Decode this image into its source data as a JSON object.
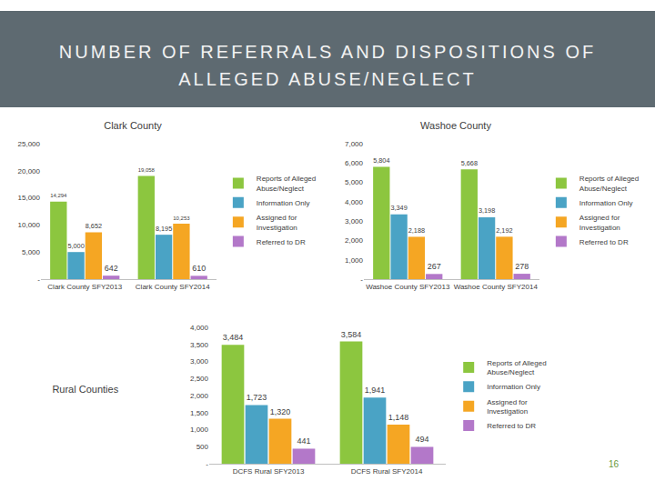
{
  "slide": {
    "title": "NUMBER OF REFERRALS AND DISPOSITIONS OF ALLEGED ABUSE/NEGLECT",
    "page": 16
  },
  "chart_data": [
    {
      "type": "bar",
      "title": "Clark County",
      "categories": [
        "Clark County SFY2013",
        "Clark County SFY2014"
      ],
      "series": [
        {
          "name": "Reports of Alleged Abuse/Neglect",
          "color": "#8cc63f",
          "values": [
            14294,
            19058
          ],
          "value_labels": [
            "14,294",
            "19,058"
          ]
        },
        {
          "name": "Information Only",
          "color": "#4aa3c5",
          "values": [
            5000,
            8195
          ],
          "value_labels": [
            "5,000",
            "8,195"
          ]
        },
        {
          "name": "Assigned for Investigation",
          "color": "#f5a623",
          "values": [
            8652,
            10253
          ],
          "value_labels": [
            "8,652",
            "10,253"
          ]
        },
        {
          "name": "Referred to DR",
          "color": "#b378c9",
          "values": [
            642,
            610
          ],
          "value_labels": [
            "642",
            "610"
          ]
        }
      ],
      "ylim": [
        0,
        25000
      ],
      "yticks": [
        {
          "value": 0,
          "label": "-"
        },
        {
          "value": 5000,
          "label": "5,000"
        },
        {
          "value": 10000,
          "label": "10,000"
        },
        {
          "value": 15000,
          "label": "15,000"
        },
        {
          "value": 20000,
          "label": "20,000"
        },
        {
          "value": 25000,
          "label": "25,000"
        }
      ],
      "grid": false,
      "legend": "right",
      "data_labels": true
    },
    {
      "type": "bar",
      "title": "Washoe County",
      "categories": [
        "Washoe County SFY2013",
        "Washoe County SFY2014"
      ],
      "series": [
        {
          "name": "Reports of Alleged Abuse/Neglect",
          "color": "#8cc63f",
          "values": [
            5804,
            5668
          ],
          "value_labels": [
            "5,804",
            "5,668"
          ]
        },
        {
          "name": "Information Only",
          "color": "#4aa3c5",
          "values": [
            3349,
            3198
          ],
          "value_labels": [
            "3,349",
            "3,198"
          ]
        },
        {
          "name": "Assigned for Investigation",
          "color": "#f5a623",
          "values": [
            2188,
            2192
          ],
          "value_labels": [
            "2,188",
            "2,192"
          ]
        },
        {
          "name": "Referred to DR",
          "color": "#b378c9",
          "values": [
            267,
            278
          ],
          "value_labels": [
            "267",
            "278"
          ]
        }
      ],
      "ylim": [
        0,
        7000
      ],
      "yticks": [
        {
          "value": 0,
          "label": "-"
        },
        {
          "value": 1000,
          "label": "1,000"
        },
        {
          "value": 2000,
          "label": "2,000"
        },
        {
          "value": 3000,
          "label": "3,000"
        },
        {
          "value": 4000,
          "label": "4,000"
        },
        {
          "value": 5000,
          "label": "5,000"
        },
        {
          "value": 6000,
          "label": "6,000"
        },
        {
          "value": 7000,
          "label": "7,000"
        }
      ],
      "grid": false,
      "legend": "right",
      "data_labels": true
    },
    {
      "type": "bar",
      "title": "Rural Counties",
      "categories": [
        "DCFS Rural SFY2013",
        "DCFS Rural SFY2014"
      ],
      "series": [
        {
          "name": "Reports of Alleged Abuse/Neglect",
          "color": "#8cc63f",
          "values": [
            3484,
            3584
          ],
          "value_labels": [
            "3,484",
            "3,584"
          ]
        },
        {
          "name": "Information Only",
          "color": "#4aa3c5",
          "values": [
            1723,
            1941
          ],
          "value_labels": [
            "1,723",
            "1,941"
          ]
        },
        {
          "name": "Assigned for Investigation",
          "color": "#f5a623",
          "values": [
            1320,
            1148
          ],
          "value_labels": [
            "1,320",
            "1,148"
          ]
        },
        {
          "name": "Referred to DR",
          "color": "#b378c9",
          "values": [
            441,
            494
          ],
          "value_labels": [
            "441",
            "494"
          ]
        }
      ],
      "ylim": [
        0,
        4000
      ],
      "yticks": [
        {
          "value": 0,
          "label": "-"
        },
        500,
        {
          "value": 1000,
          "label": "1,000"
        },
        {
          "value": 1500,
          "label": "1,500"
        },
        {
          "value": 2000,
          "label": "2,000"
        },
        {
          "value": 2500,
          "label": "2,500"
        },
        {
          "value": 3000,
          "label": "3,000"
        },
        {
          "value": 3500,
          "label": "3,500"
        },
        {
          "value": 4000,
          "label": "4,000"
        }
      ],
      "grid": false,
      "legend": "right",
      "data_labels": true
    }
  ]
}
